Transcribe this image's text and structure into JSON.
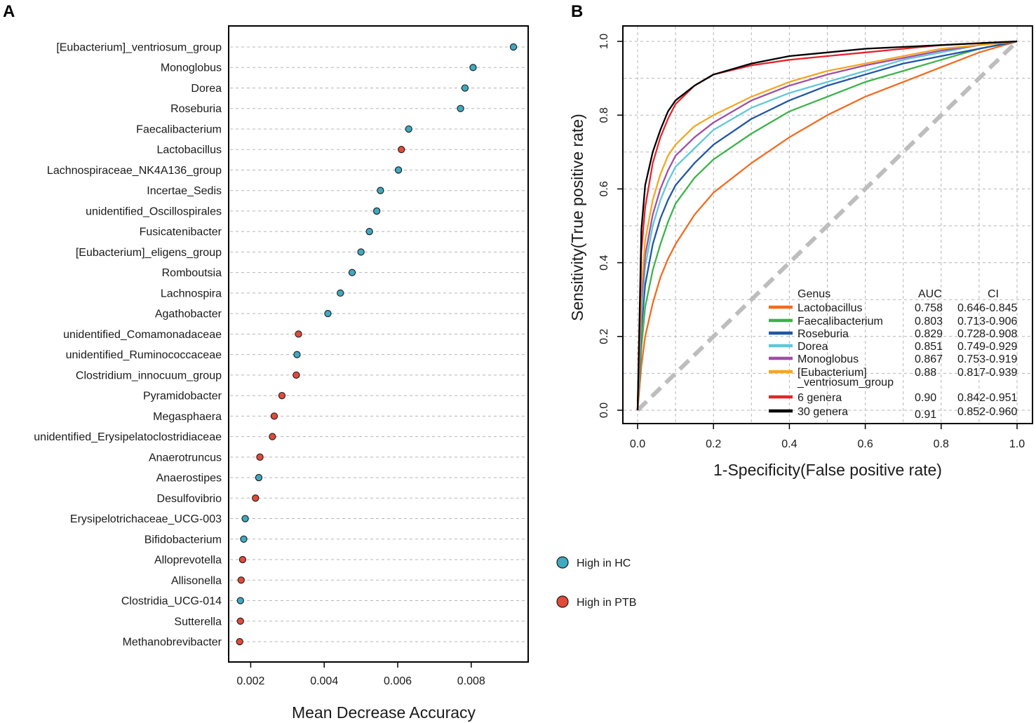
{
  "panels": {
    "a_label": "A",
    "b_label": "B"
  },
  "legend_a": {
    "items": [
      {
        "label": "High in HC",
        "color": "#3fa9c0"
      },
      {
        "label": "High in PTB",
        "color": "#e04b3a"
      }
    ]
  },
  "legend_b": {
    "header_genus": "Genus",
    "header_auc": "AUC",
    "header_ci": "CI"
  },
  "chart_data": [
    {
      "type": "scatter",
      "title": "",
      "xlabel": "Mean Decrease Accuracy",
      "ylabel": "",
      "xlim": [
        0.0014,
        0.00955
      ],
      "xticks": [
        "0.002",
        "0.004",
        "0.006",
        "0.008"
      ],
      "grid": "horizontal dashed",
      "categories": [
        "[Eubacterium]_ventriosum_group",
        "Monoglobus",
        "Dorea",
        "Roseburia",
        "Faecalibacterium",
        "Lactobacillus",
        "Lachnospiraceae_NK4A136_group",
        "Incertae_Sedis",
        "unidentified_Oscillospirales",
        "Fusicatenibacter",
        "[Eubacterium]_eligens_group",
        "Romboutsia",
        "Lachnospira",
        "Agathobacter",
        "unidentified_Comamonadaceae",
        "unidentified_Ruminococcaceae",
        "Clostridium_innocuum_group",
        "Pyramidobacter",
        "Megasphaera",
        "unidentified_Erysipelatoclostridiaceae",
        "Anaerotruncus",
        "Anaerostipes",
        "Desulfovibrio",
        "Erysipelotrichaceae_UCG-003",
        "Bifidobacterium",
        "Alloprevotella",
        "Allisonella",
        "Clostridia_UCG-014",
        "Sutterella",
        "Methanobrevibacter"
      ],
      "values": [
        0.00915,
        0.00805,
        0.00783,
        0.00771,
        0.0063,
        0.0061,
        0.00602,
        0.00553,
        0.00543,
        0.00523,
        0.005,
        0.00476,
        0.00444,
        0.0041,
        0.0033,
        0.00326,
        0.00324,
        0.00285,
        0.00264,
        0.00259,
        0.00225,
        0.00222,
        0.00213,
        0.00185,
        0.00181,
        0.00178,
        0.00174,
        0.00172,
        0.00172,
        0.0017
      ],
      "groups": [
        "HC",
        "HC",
        "HC",
        "HC",
        "HC",
        "PTB",
        "HC",
        "HC",
        "HC",
        "HC",
        "HC",
        "HC",
        "HC",
        "HC",
        "PTB",
        "HC",
        "PTB",
        "PTB",
        "PTB",
        "PTB",
        "PTB",
        "HC",
        "PTB",
        "HC",
        "HC",
        "PTB",
        "PTB",
        "HC",
        "PTB",
        "PTB"
      ]
    },
    {
      "type": "line",
      "title": "",
      "xlabel": "1-Specificity(False positive rate)",
      "ylabel": "Sensitivity(True positive rate)",
      "xlim": [
        0,
        1
      ],
      "ylim": [
        0,
        1
      ],
      "xticks": [
        "0.0",
        "0.2",
        "0.4",
        "0.6",
        "0.8",
        "1.0"
      ],
      "yticks": [
        "0.0",
        "0.2",
        "0.4",
        "0.6",
        "0.8",
        "1.0"
      ],
      "grid": true,
      "legend_position": "bottom-right",
      "reference_line": {
        "x": [
          0,
          1
        ],
        "y": [
          0,
          1
        ],
        "style": "dashed",
        "color": "#bdbdbd"
      },
      "x": [
        0,
        0.01,
        0.02,
        0.04,
        0.06,
        0.08,
        0.1,
        0.15,
        0.2,
        0.3,
        0.4,
        0.5,
        0.6,
        0.7,
        0.8,
        0.9,
        1.0
      ],
      "series": [
        {
          "name": "Lactobacillus",
          "label": "Lactobacillus",
          "auc": "0.758",
          "ci": "0.646-0.845",
          "color": "#f26b21",
          "values": [
            0,
            0.12,
            0.2,
            0.29,
            0.36,
            0.41,
            0.45,
            0.53,
            0.59,
            0.67,
            0.74,
            0.8,
            0.85,
            0.89,
            0.93,
            0.97,
            1.0
          ]
        },
        {
          "name": "Faecalibacterium",
          "label": "Faecalibacterium",
          "auc": "0.803",
          "ci": "0.713-0.906",
          "color": "#3cb34a",
          "values": [
            0,
            0.17,
            0.28,
            0.38,
            0.45,
            0.51,
            0.56,
            0.63,
            0.68,
            0.75,
            0.81,
            0.85,
            0.89,
            0.92,
            0.95,
            0.98,
            1.0
          ]
        },
        {
          "name": "Roseburia",
          "label": "Roseburia",
          "auc": "0.829",
          "ci": "0.728-0.908",
          "color": "#2156a5",
          "values": [
            0,
            0.22,
            0.34,
            0.45,
            0.52,
            0.57,
            0.61,
            0.67,
            0.72,
            0.79,
            0.84,
            0.88,
            0.91,
            0.94,
            0.96,
            0.98,
            1.0
          ]
        },
        {
          "name": "Dorea",
          "label": "Dorea",
          "auc": "0.851",
          "ci": "0.749-0.929",
          "color": "#5fc8d8",
          "values": [
            0,
            0.26,
            0.39,
            0.5,
            0.57,
            0.62,
            0.66,
            0.71,
            0.76,
            0.82,
            0.86,
            0.89,
            0.92,
            0.95,
            0.97,
            0.99,
            1.0
          ]
        },
        {
          "name": "Monoglobus",
          "label": "Monoglobus",
          "auc": "0.867",
          "ci": "0.753-0.919",
          "color": "#9e4fa6",
          "values": [
            0,
            0.3,
            0.42,
            0.53,
            0.6,
            0.65,
            0.69,
            0.74,
            0.78,
            0.84,
            0.88,
            0.91,
            0.935,
            0.955,
            0.975,
            0.99,
            1.0
          ]
        },
        {
          "name": "[Eubacterium]_ventriosum_group",
          "label": "[Eubacterium]",
          "label2": "_ventriosum_group",
          "auc": "0.88",
          "ci": "0.817-0.939",
          "color": "#f5a623",
          "values": [
            0,
            0.33,
            0.46,
            0.57,
            0.64,
            0.69,
            0.72,
            0.77,
            0.8,
            0.85,
            0.89,
            0.92,
            0.94,
            0.96,
            0.98,
            0.99,
            1.0
          ]
        },
        {
          "name": "6 genera",
          "label": "6 genera",
          "auc": "0.90",
          "ci": "0.842-0.951",
          "color": "#e3242b",
          "values": [
            0,
            0.43,
            0.55,
            0.67,
            0.74,
            0.79,
            0.83,
            0.88,
            0.91,
            0.935,
            0.95,
            0.96,
            0.97,
            0.98,
            0.99,
            0.995,
            1.0
          ]
        },
        {
          "name": "30 genera",
          "label": "30 genera",
          "auc": "0.91",
          "ci": "0.852-0.960",
          "color": "#000000",
          "values": [
            0,
            0.49,
            0.61,
            0.7,
            0.76,
            0.81,
            0.84,
            0.88,
            0.91,
            0.94,
            0.96,
            0.97,
            0.98,
            0.985,
            0.99,
            0.995,
            1.0
          ]
        }
      ]
    }
  ]
}
